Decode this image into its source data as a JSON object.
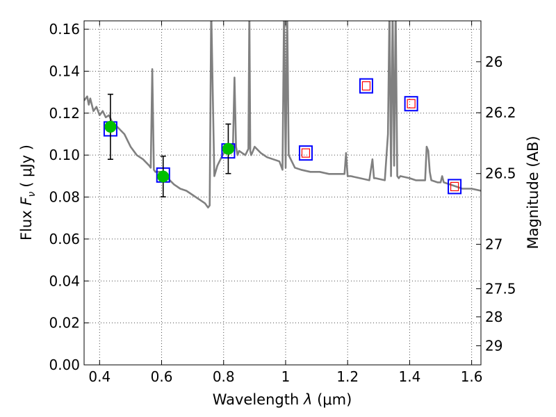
{
  "chart_data": {
    "type": "line",
    "xlabel": "Wavelength",
    "xlabel_symbol": "λ",
    "xlabel_unit": "(μm)",
    "ylabel": "Flux",
    "ylabel_symbol": "F",
    "ylabel_subscript": "ν",
    "ylabel_unit": "( μJy )",
    "y2label": "Magnitude (AB)",
    "xlim": [
      0.35,
      1.63
    ],
    "ylim": [
      0.0,
      0.164
    ],
    "grid": true,
    "x_ticks": [
      0.4,
      0.6,
      0.8,
      1.0,
      1.2,
      1.4,
      1.6
    ],
    "x_tick_labels": [
      "0.4",
      "0.6",
      "0.8",
      "1",
      "1.2",
      "1.4",
      "1.6"
    ],
    "y_ticks": [
      0.0,
      0.02,
      0.04,
      0.06,
      0.08,
      0.1,
      0.12,
      0.14,
      0.16
    ],
    "y_tick_labels": [
      "0.00",
      "0.02",
      "0.04",
      "0.06",
      "0.08",
      "0.10",
      "0.12",
      "0.14",
      "0.16"
    ],
    "y2_ticks": [
      {
        "label": "26",
        "flux": 0.1445
      },
      {
        "label": "26.2",
        "flux": 0.1202
      },
      {
        "label": "26.5",
        "flux": 0.0912
      },
      {
        "label": "27",
        "flux": 0.0575
      },
      {
        "label": "27.5",
        "flux": 0.0363
      },
      {
        "label": "28",
        "flux": 0.0229
      },
      {
        "label": "29",
        "flux": 0.0091
      }
    ],
    "colors": {
      "model": "#808080",
      "observed": "#00c000",
      "synthetic_box": "#0000ff",
      "upper_limit_box": "#ff0000"
    },
    "series": [
      {
        "kind": "model_spectrum",
        "x": [
          0.35,
          0.36,
          0.365,
          0.37,
          0.38,
          0.39,
          0.4,
          0.41,
          0.42,
          0.43,
          0.44,
          0.46,
          0.48,
          0.5,
          0.52,
          0.54,
          0.56,
          0.565,
          0.57,
          0.575,
          0.58,
          0.6,
          0.62,
          0.64,
          0.66,
          0.68,
          0.7,
          0.72,
          0.74,
          0.75,
          0.755,
          0.76,
          0.765,
          0.77,
          0.78,
          0.79,
          0.8,
          0.81,
          0.82,
          0.83,
          0.835,
          0.84,
          0.845,
          0.85,
          0.86,
          0.87,
          0.88,
          0.883,
          0.886,
          0.889,
          0.892,
          0.9,
          0.92,
          0.94,
          0.96,
          0.98,
          0.99,
          0.995,
          1.0,
          1.005,
          1.01,
          1.03,
          1.05,
          1.08,
          1.11,
          1.14,
          1.17,
          1.19,
          1.195,
          1.2,
          1.21,
          1.24,
          1.27,
          1.28,
          1.285,
          1.29,
          1.32,
          1.33,
          1.335,
          1.34,
          1.345,
          1.35,
          1.355,
          1.36,
          1.365,
          1.37,
          1.4,
          1.42,
          1.44,
          1.45,
          1.455,
          1.46,
          1.465,
          1.47,
          1.49,
          1.5,
          1.505,
          1.51,
          1.53,
          1.55,
          1.57,
          1.6,
          1.63
        ],
        "y": [
          0.126,
          0.128,
          0.124,
          0.127,
          0.121,
          0.123,
          0.119,
          0.121,
          0.118,
          0.119,
          0.116,
          0.113,
          0.11,
          0.104,
          0.1,
          0.098,
          0.095,
          0.094,
          0.141,
          0.093,
          0.092,
          0.092,
          0.089,
          0.086,
          0.084,
          0.083,
          0.081,
          0.079,
          0.077,
          0.075,
          0.076,
          0.17,
          0.13,
          0.09,
          0.095,
          0.098,
          0.101,
          0.101,
          0.102,
          0.103,
          0.137,
          0.104,
          0.1,
          0.102,
          0.101,
          0.1,
          0.103,
          0.17,
          0.102,
          0.1,
          0.101,
          0.104,
          0.101,
          0.099,
          0.098,
          0.097,
          0.093,
          0.17,
          0.094,
          0.17,
          0.1,
          0.094,
          0.093,
          0.092,
          0.092,
          0.091,
          0.091,
          0.091,
          0.101,
          0.09,
          0.09,
          0.089,
          0.088,
          0.098,
          0.089,
          0.089,
          0.088,
          0.11,
          0.17,
          0.09,
          0.17,
          0.095,
          0.17,
          0.09,
          0.089,
          0.09,
          0.089,
          0.088,
          0.088,
          0.088,
          0.104,
          0.102,
          0.092,
          0.088,
          0.087,
          0.087,
          0.09,
          0.087,
          0.086,
          0.085,
          0.084,
          0.084,
          0.083
        ]
      },
      {
        "kind": "observed_photometry",
        "x": [
          0.435,
          0.605,
          0.815
        ],
        "y": [
          0.1135,
          0.0898,
          0.103
        ],
        "yerr": [
          0.0155,
          0.0097,
          0.0118
        ]
      },
      {
        "kind": "synthetic_photometry",
        "x": [
          0.435,
          0.605,
          0.815,
          1.065,
          1.26,
          1.405,
          1.545
        ],
        "y": [
          0.1125,
          0.0905,
          0.102,
          0.101,
          0.133,
          0.1245,
          0.085
        ]
      },
      {
        "kind": "upper_limits",
        "x": [
          1.065,
          1.26,
          1.405,
          1.545
        ],
        "y": [
          0.101,
          0.133,
          0.1245,
          0.085
        ]
      }
    ]
  }
}
